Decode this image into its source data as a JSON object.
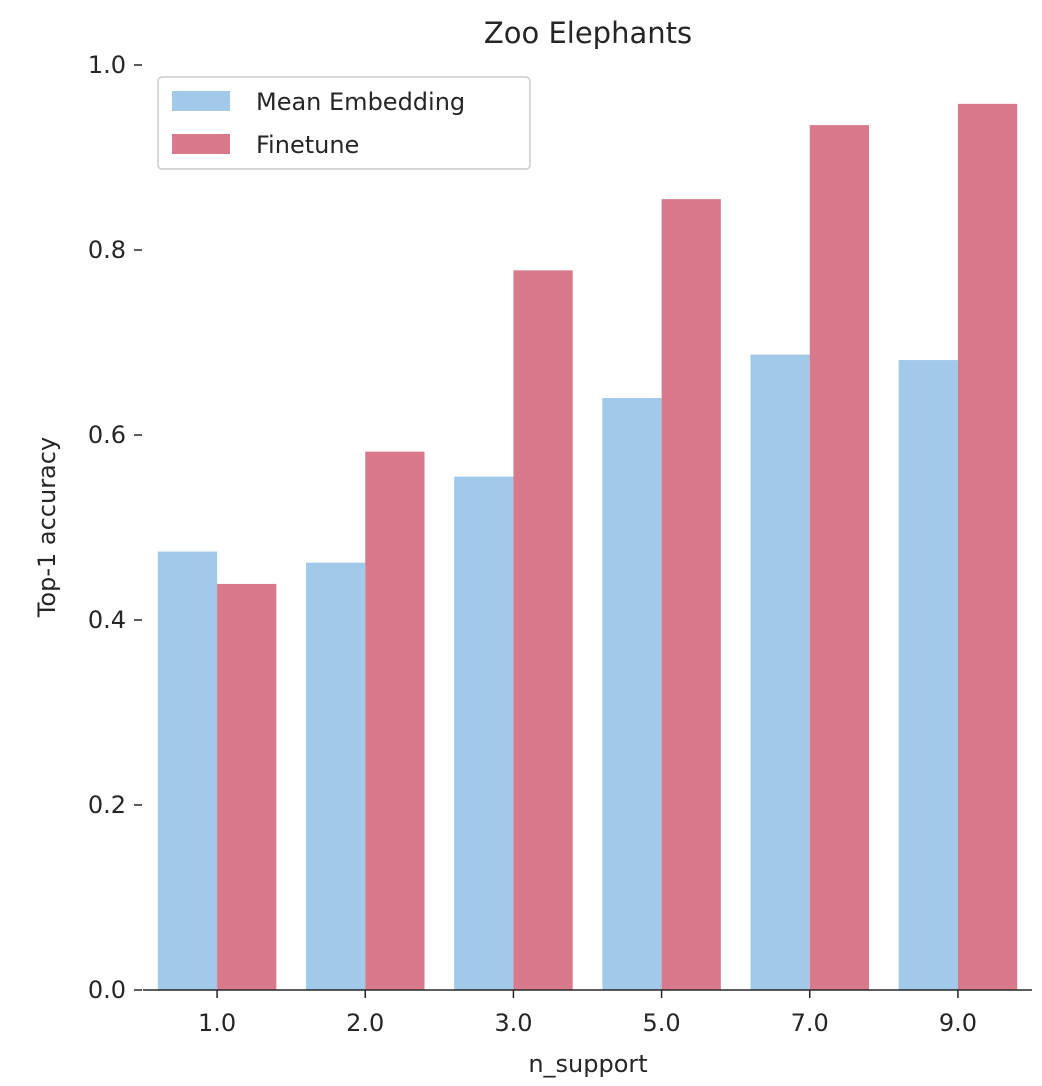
{
  "colors": {
    "mean_embedding": "#a1c9ea",
    "finetune": "#d87a8b",
    "axis": "#262626",
    "legend_border": "#cccccc"
  },
  "chart_data": {
    "type": "bar",
    "title": "Zoo Elephants",
    "xlabel": "n_support",
    "ylabel": "Top-1 accuracy",
    "categories": [
      "1.0",
      "2.0",
      "3.0",
      "5.0",
      "7.0",
      "9.0"
    ],
    "series": [
      {
        "name": "Mean Embedding",
        "values": [
          0.474,
          0.462,
          0.555,
          0.64,
          0.687,
          0.681
        ]
      },
      {
        "name": "Finetune",
        "values": [
          0.439,
          0.582,
          0.778,
          0.855,
          0.935,
          0.958
        ]
      }
    ],
    "ylim": [
      0,
      1.0
    ],
    "yticks": [
      "0.0",
      "0.2",
      "0.4",
      "0.6",
      "0.8",
      "1.0"
    ],
    "grid": false,
    "legend_position": "top-left"
  }
}
